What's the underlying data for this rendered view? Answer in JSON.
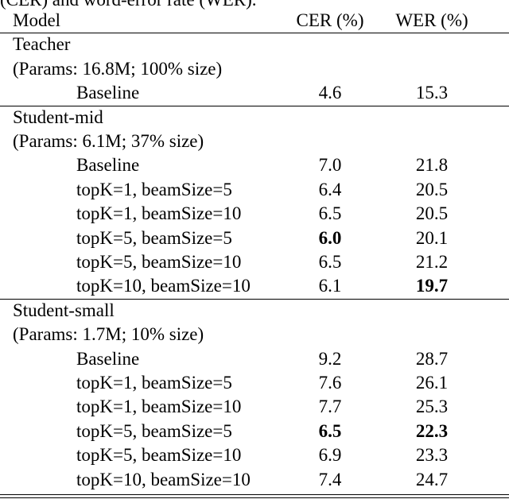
{
  "caption": "(CER) and word-error rate (WER).",
  "header": {
    "model": "Model",
    "cer": "CER (%)",
    "wer": "WER (%)"
  },
  "groups": [
    {
      "name": "Teacher",
      "params": "(Params: 16.8M; 100% size)",
      "rows": [
        {
          "model": "Baseline",
          "cer": "4.6",
          "wer": "15.3",
          "cer_bold": false,
          "wer_bold": false
        }
      ]
    },
    {
      "name": "Student-mid",
      "params": "(Params: 6.1M; 37% size)",
      "rows": [
        {
          "model": "Baseline",
          "cer": "7.0",
          "wer": "21.8",
          "cer_bold": false,
          "wer_bold": false
        },
        {
          "model": "topK=1, beamSize=5",
          "cer": "6.4",
          "wer": "20.5",
          "cer_bold": false,
          "wer_bold": false
        },
        {
          "model": "topK=1, beamSize=10",
          "cer": "6.5",
          "wer": "20.5",
          "cer_bold": false,
          "wer_bold": false
        },
        {
          "model": "topK=5, beamSize=5",
          "cer": "6.0",
          "wer": "20.1",
          "cer_bold": true,
          "wer_bold": false
        },
        {
          "model": "topK=5, beamSize=10",
          "cer": "6.5",
          "wer": "21.2",
          "cer_bold": false,
          "wer_bold": false
        },
        {
          "model": "topK=10, beamSize=10",
          "cer": "6.1",
          "wer": "19.7",
          "cer_bold": false,
          "wer_bold": true
        }
      ]
    },
    {
      "name": "Student-small",
      "params": "(Params: 1.7M; 10% size)",
      "rows": [
        {
          "model": "Baseline",
          "cer": "9.2",
          "wer": "28.7",
          "cer_bold": false,
          "wer_bold": false
        },
        {
          "model": "topK=1, beamSize=5",
          "cer": "7.6",
          "wer": "26.1",
          "cer_bold": false,
          "wer_bold": false
        },
        {
          "model": "topK=1, beamSize=10",
          "cer": "7.7",
          "wer": "25.3",
          "cer_bold": false,
          "wer_bold": false
        },
        {
          "model": "topK=5, beamSize=5",
          "cer": "6.5",
          "wer": "22.3",
          "cer_bold": true,
          "wer_bold": true
        },
        {
          "model": "topK=5, beamSize=10",
          "cer": "6.9",
          "wer": "23.3",
          "cer_bold": false,
          "wer_bold": false
        },
        {
          "model": "topK=10, beamSize=10",
          "cer": "7.4",
          "wer": "24.7",
          "cer_bold": false,
          "wer_bold": false
        }
      ]
    }
  ]
}
